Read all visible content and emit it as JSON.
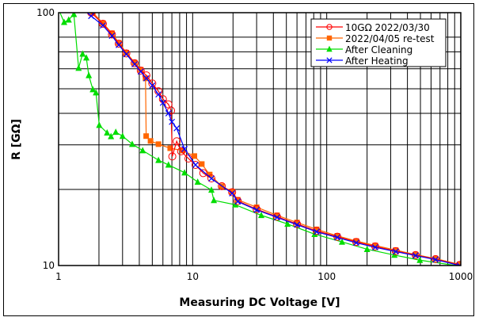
{
  "chart_data": {
    "type": "scatter",
    "title": "",
    "xlabel": "Measuring DC Voltage [V]",
    "ylabel": "R [GΩ]",
    "xscale": "log",
    "yscale": "log",
    "xlim": [
      1,
      1000
    ],
    "ylim": [
      10,
      100
    ],
    "x_ticks": [
      "1",
      "10",
      "100",
      "1000"
    ],
    "y_ticks": [
      "10",
      "100"
    ],
    "grid": true,
    "legend_position": "top-right",
    "series": [
      {
        "name": "10GΩ 2022/03/30",
        "color": "#ff0000",
        "marker": "open-circle",
        "points": [
          [
            1.75,
            100
          ],
          [
            2.14,
            90.4
          ],
          [
            2.5,
            82
          ],
          [
            2.81,
            75.4
          ],
          [
            3.2,
            69
          ],
          [
            3.69,
            63.1
          ],
          [
            4.1,
            59
          ],
          [
            4.52,
            56.5
          ],
          [
            5.0,
            52.5
          ],
          [
            5.56,
            48.9
          ],
          [
            6.0,
            45.5
          ],
          [
            6.6,
            43.4
          ],
          [
            6.9,
            41
          ],
          [
            7.05,
            27
          ],
          [
            7.6,
            31
          ],
          [
            8.2,
            28.3
          ],
          [
            9.3,
            26.5
          ],
          [
            10.5,
            25
          ],
          [
            12,
            23.2
          ],
          [
            13.8,
            22.1
          ],
          [
            16.5,
            20.6
          ],
          [
            19.7,
            19.5
          ],
          [
            21.7,
            18
          ],
          [
            30,
            16.7
          ],
          [
            42.6,
            15.6
          ],
          [
            60,
            14.6
          ],
          [
            84,
            13.7
          ],
          [
            120,
            13
          ],
          [
            166,
            12.4
          ],
          [
            230,
            11.9
          ],
          [
            327,
            11.4
          ],
          [
            460,
            11
          ],
          [
            648,
            10.6
          ],
          [
            980,
            10.05
          ]
        ]
      },
      {
        "name": "2022/04/05 re-test",
        "color": "#ff6600",
        "marker": "filled-square",
        "points": [
          [
            1.8,
            100
          ],
          [
            2.14,
            91
          ],
          [
            2.5,
            83
          ],
          [
            2.81,
            76
          ],
          [
            3.2,
            69.5
          ],
          [
            3.69,
            63.5
          ],
          [
            4.1,
            59.5
          ],
          [
            4.45,
            55
          ],
          [
            4.5,
            32.5
          ],
          [
            4.85,
            31.1
          ],
          [
            5.56,
            30.2
          ],
          [
            6.8,
            29.1
          ],
          [
            8.4,
            28.5
          ],
          [
            10.3,
            27.1
          ],
          [
            11.7,
            25.2
          ],
          [
            13.4,
            22.9
          ],
          [
            16.5,
            20.6
          ],
          [
            19.7,
            19.6
          ],
          [
            21.7,
            18.2
          ],
          [
            30,
            17
          ],
          [
            42.6,
            15.8
          ],
          [
            60,
            14.8
          ],
          [
            84,
            13.9
          ],
          [
            120,
            13.1
          ],
          [
            166,
            12.5
          ],
          [
            230,
            12
          ],
          [
            327,
            11.5
          ],
          [
            460,
            11.05
          ],
          [
            648,
            10.65
          ],
          [
            980,
            10.1
          ]
        ]
      },
      {
        "name": "After Cleaning",
        "color": "#00dd00",
        "marker": "filled-triangle",
        "points": [
          [
            1.0,
            103
          ],
          [
            1.1,
            91.7
          ],
          [
            1.19,
            93.7
          ],
          [
            1.3,
            98.6
          ],
          [
            1.41,
            60.4
          ],
          [
            1.51,
            68.7
          ],
          [
            1.61,
            66.3
          ],
          [
            1.68,
            56.5
          ],
          [
            1.8,
            49.7
          ],
          [
            1.9,
            48.3
          ],
          [
            2.01,
            35.9
          ],
          [
            2.3,
            33.5
          ],
          [
            2.46,
            32.4
          ],
          [
            2.67,
            33.7
          ],
          [
            3.0,
            32.5
          ],
          [
            3.54,
            30.2
          ],
          [
            4.24,
            28.5
          ],
          [
            5.56,
            26.1
          ],
          [
            6.6,
            25
          ],
          [
            8.7,
            23.3
          ],
          [
            10.9,
            21.4
          ],
          [
            13.8,
            19.9
          ],
          [
            14.4,
            18.1
          ],
          [
            20.8,
            17.4
          ],
          [
            32.5,
            15.8
          ],
          [
            51,
            14.6
          ],
          [
            81.2,
            13.3
          ],
          [
            130,
            12.4
          ],
          [
            200,
            11.6
          ],
          [
            320,
            11
          ],
          [
            495,
            10.5
          ],
          [
            980,
            9.95
          ]
        ]
      },
      {
        "name": "After Heating",
        "color": "#0000ff",
        "marker": "x",
        "points": [
          [
            1.5,
            104
          ],
          [
            1.75,
            97
          ],
          [
            2.14,
            89
          ],
          [
            2.5,
            81
          ],
          [
            2.81,
            74.5
          ],
          [
            3.2,
            68.5
          ],
          [
            3.69,
            62.5
          ],
          [
            4.1,
            58.5
          ],
          [
            4.52,
            55
          ],
          [
            5.0,
            51.5
          ],
          [
            5.56,
            47.5
          ],
          [
            6.0,
            44
          ],
          [
            6.6,
            40
          ],
          [
            7.0,
            37
          ],
          [
            7.6,
            34.9
          ],
          [
            8.7,
            28.9
          ],
          [
            10.5,
            25
          ],
          [
            13.8,
            22.1
          ],
          [
            19.7,
            19.3
          ],
          [
            21.7,
            17.9
          ],
          [
            30,
            16.6
          ],
          [
            42.6,
            15.5
          ],
          [
            60,
            14.5
          ],
          [
            84,
            13.6
          ],
          [
            120,
            12.9
          ],
          [
            166,
            12.3
          ],
          [
            230,
            11.8
          ],
          [
            327,
            11.35
          ],
          [
            460,
            10.95
          ],
          [
            648,
            10.55
          ],
          [
            980,
            10
          ]
        ]
      }
    ]
  }
}
